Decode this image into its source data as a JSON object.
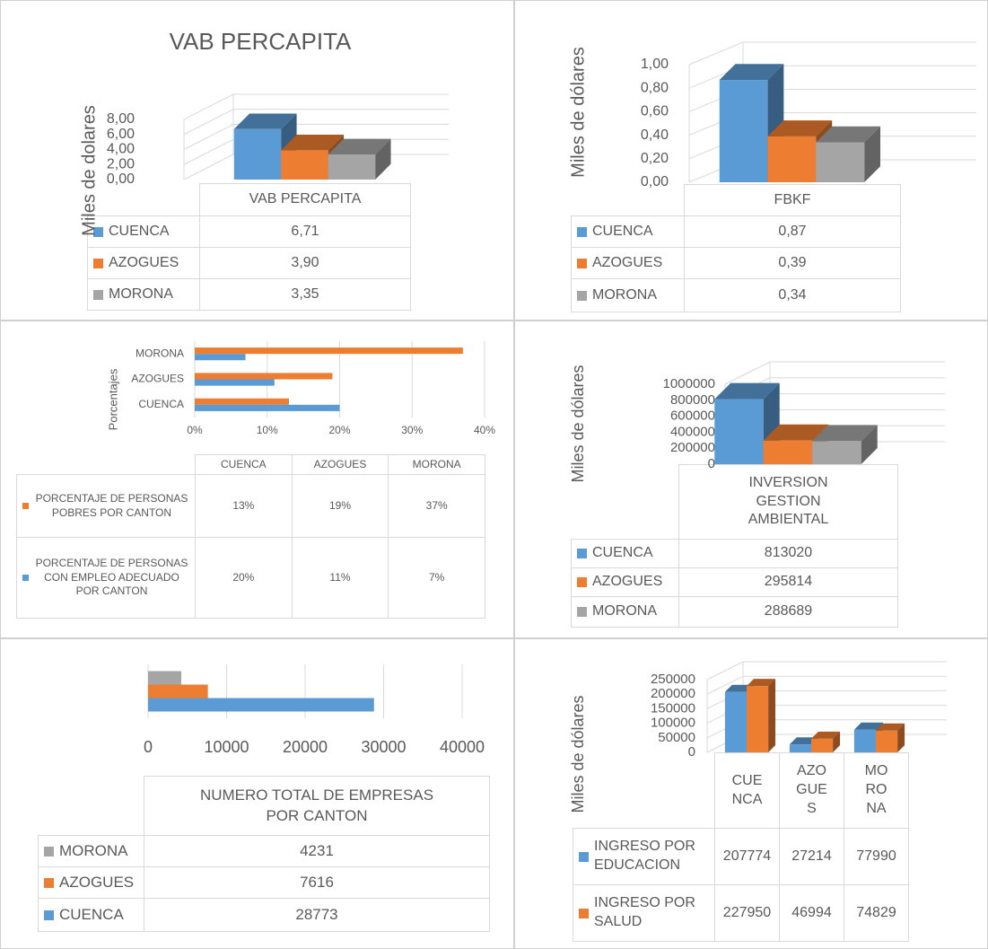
{
  "chart_data": [
    {
      "type": "bar",
      "title": "VAB PERCAPITA",
      "ylabel": "Miles de dolares",
      "categories": [
        "VAB PERCAPITA"
      ],
      "series": [
        {
          "name": "CUENCA",
          "color": "#5b9bd5",
          "values": [
            6.71
          ],
          "value_labels": [
            "6,71"
          ]
        },
        {
          "name": "AZOGUES",
          "color": "#ed7d31",
          "values": [
            3.9
          ],
          "value_labels": [
            "3,90"
          ]
        },
        {
          "name": "MORONA",
          "color": "#a5a5a5",
          "values": [
            3.35
          ],
          "value_labels": [
            "3,35"
          ]
        }
      ],
      "ylim": [
        0,
        8
      ],
      "yticks": [
        {
          "value": 0,
          "label": "0,00"
        },
        {
          "value": 2,
          "label": "2,00"
        },
        {
          "value": 4,
          "label": "4,00"
        },
        {
          "value": 6,
          "label": "6,00"
        },
        {
          "value": 8,
          "label": "8,00"
        }
      ],
      "grid": true
    },
    {
      "type": "bar",
      "ylabel": "Miles de dólares",
      "categories": [
        "FBKF"
      ],
      "series": [
        {
          "name": "CUENCA",
          "color": "#5b9bd5",
          "values": [
            0.87
          ],
          "value_labels": [
            "0,87"
          ]
        },
        {
          "name": "AZOGUES",
          "color": "#ed7d31",
          "values": [
            0.39
          ],
          "value_labels": [
            "0,39"
          ]
        },
        {
          "name": "MORONA",
          "color": "#a5a5a5",
          "values": [
            0.34
          ],
          "value_labels": [
            "0,34"
          ]
        }
      ],
      "ylim": [
        0,
        1
      ],
      "yticks": [
        {
          "value": 0,
          "label": "0,00"
        },
        {
          "value": 0.2,
          "label": "0,20"
        },
        {
          "value": 0.4,
          "label": "0,40"
        },
        {
          "value": 0.6,
          "label": "0,60"
        },
        {
          "value": 0.8,
          "label": "0,80"
        },
        {
          "value": 1,
          "label": "1,00"
        }
      ],
      "grid": true
    },
    {
      "type": "barh",
      "ylabel": "Porcentajes",
      "categories": [
        "CUENCA",
        "AZOGUES",
        "MORONA"
      ],
      "series": [
        {
          "name": "PORCENTAJE DE PERSONAS POBRES POR CANTON",
          "color": "#ed7d31",
          "values": [
            13,
            19,
            37
          ],
          "value_labels": [
            "13%",
            "19%",
            "37%"
          ]
        },
        {
          "name": "PORCENTAJE DE PERSONAS CON EMPLEO ADECUADO POR CANTON",
          "color": "#5b9bd5",
          "values": [
            20,
            11,
            7
          ],
          "value_labels": [
            "20%",
            "11%",
            "7%"
          ]
        }
      ],
      "xlim": [
        0,
        40
      ],
      "xticks": [
        {
          "value": 0,
          "label": "0%"
        },
        {
          "value": 10,
          "label": "10%"
        },
        {
          "value": 20,
          "label": "20%"
        },
        {
          "value": 30,
          "label": "30%"
        },
        {
          "value": 40,
          "label": "40%"
        }
      ],
      "grid": true
    },
    {
      "type": "bar",
      "ylabel": "Miles de dólares",
      "categories": [
        "INVERSION GESTION AMBIENTAL"
      ],
      "series": [
        {
          "name": "CUENCA",
          "color": "#5b9bd5",
          "values": [
            813020
          ]
        },
        {
          "name": "AZOGUES",
          "color": "#ed7d31",
          "values": [
            295814
          ]
        },
        {
          "name": "MORONA",
          "color": "#a5a5a5",
          "values": [
            288689
          ]
        }
      ],
      "ylim": [
        0,
        1000000
      ],
      "yticks": [
        0,
        200000,
        400000,
        600000,
        800000,
        1000000
      ],
      "grid": true
    },
    {
      "type": "barh",
      "categories": [
        "NUMERO TOTAL DE EMPRESAS POR CANTON"
      ],
      "series": [
        {
          "name": "MORONA",
          "color": "#a5a5a5",
          "values": [
            4231
          ]
        },
        {
          "name": "AZOGUES",
          "color": "#ed7d31",
          "values": [
            7616
          ]
        },
        {
          "name": "CUENCA",
          "color": "#5b9bd5",
          "values": [
            28773
          ]
        }
      ],
      "xlim": [
        0,
        40000
      ],
      "xticks": [
        0,
        10000,
        20000,
        30000,
        40000
      ],
      "grid": true
    },
    {
      "type": "bar",
      "ylabel": "Miles de dólares",
      "categories": [
        "CUENCA",
        "AZOGUES",
        "MORONA"
      ],
      "series": [
        {
          "name": "INGRESO POR EDUCACION",
          "color": "#5b9bd5",
          "values": [
            207774,
            27214,
            77990
          ]
        },
        {
          "name": "INGRESO POR SALUD",
          "color": "#ed7d31",
          "values": [
            227950,
            46994,
            74829
          ]
        }
      ],
      "ylim": [
        0,
        250000
      ],
      "yticks": [
        0,
        50000,
        100000,
        150000,
        200000,
        250000
      ],
      "grid": true
    }
  ]
}
